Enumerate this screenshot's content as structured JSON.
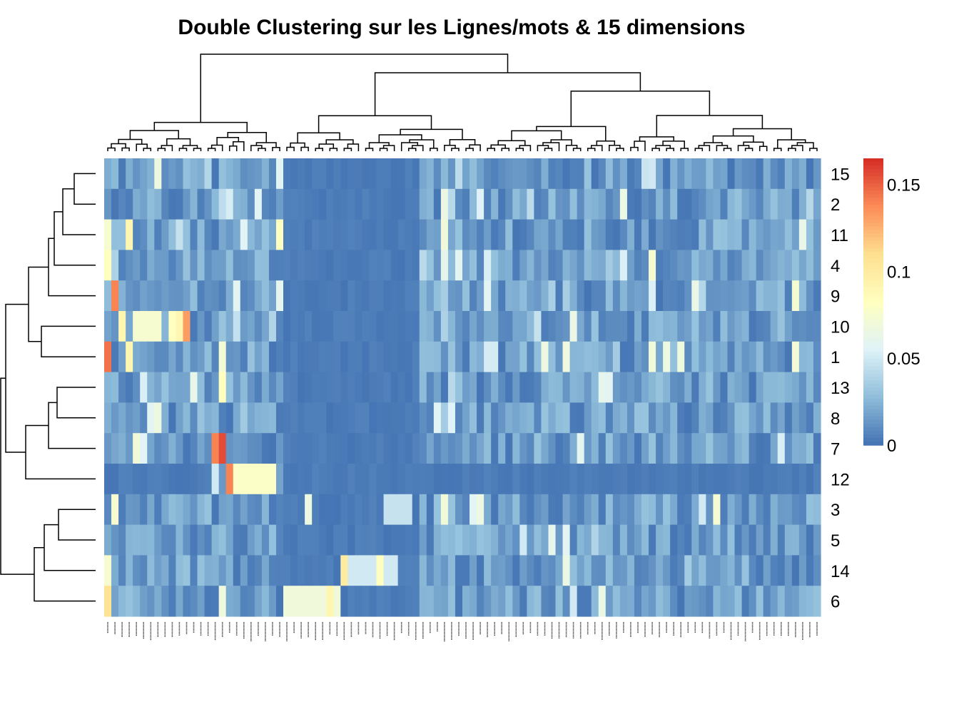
{
  "chart_data": {
    "type": "heatmap",
    "title": "Double Clustering sur les Lignes/mots & 15 dimensions",
    "rows": [
      "15",
      "2",
      "11",
      "4",
      "9",
      "10",
      "1",
      "13",
      "8",
      "7",
      "12",
      "3",
      "5",
      "14",
      "6"
    ],
    "column_count": 100,
    "legend": {
      "position": "right",
      "ticks": [
        "0",
        "0.05",
        "0.1",
        "0.15"
      ],
      "tick_values": [
        0,
        0.05,
        0.1,
        0.15
      ],
      "range": [
        0,
        0.165
      ],
      "colors": [
        "#4575b4",
        "#91bfdb",
        "#e0f3f8",
        "#ffffbf",
        "#fee090",
        "#fc8d59",
        "#d73027"
      ]
    },
    "column_dendrogram": true,
    "row_dendrogram": true
  }
}
